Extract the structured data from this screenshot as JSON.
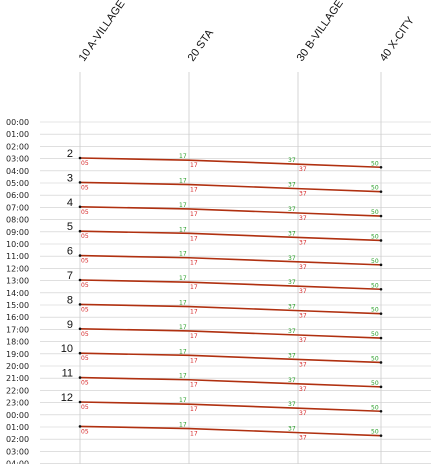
{
  "chart_data": {
    "type": "line",
    "stations": [
      {
        "km": 10,
        "label": "10 A-VILLAGE"
      },
      {
        "km": 20,
        "label": "20 STA"
      },
      {
        "km": 30,
        "label": "30 B-VILLAGE"
      },
      {
        "km": 40,
        "label": "40 X-CITY"
      }
    ],
    "time_labels": [
      "00:00",
      "01:00",
      "02:00",
      "03:00",
      "04:00",
      "05:00",
      "06:00",
      "07:00",
      "08:00",
      "09:00",
      "10:00",
      "11:00",
      "12:00",
      "13:00",
      "14:00",
      "15:00",
      "16:00",
      "17:00",
      "18:00",
      "19:00",
      "20:00",
      "21:00",
      "22:00",
      "23:00",
      "00:00",
      "01:00",
      "02:00",
      "03:00",
      "04:00"
    ],
    "trains": [
      {
        "number": "2",
        "depart_hour": 3
      },
      {
        "number": "3",
        "depart_hour": 5
      },
      {
        "number": "4",
        "depart_hour": 7
      },
      {
        "number": "5",
        "depart_hour": 9
      },
      {
        "number": "6",
        "depart_hour": 11
      },
      {
        "number": "7",
        "depart_hour": 13
      },
      {
        "number": "8",
        "depart_hour": 15
      },
      {
        "number": "9",
        "depart_hour": 17
      },
      {
        "number": "10",
        "depart_hour": 19
      },
      {
        "number": "11",
        "depart_hour": 21
      },
      {
        "number": "12",
        "depart_hour": 23
      },
      {
        "number": "",
        "depart_hour": 25
      }
    ],
    "minute_marks": {
      "departure": [
        "05",
        "17",
        "37",
        ""
      ],
      "arrival": [
        "",
        "17",
        "37",
        "50"
      ]
    },
    "colors": {
      "line": "#b03010",
      "grid": "#cccccc",
      "arrival_text": "#2ca02c",
      "departure_text": "#d62728"
    }
  }
}
